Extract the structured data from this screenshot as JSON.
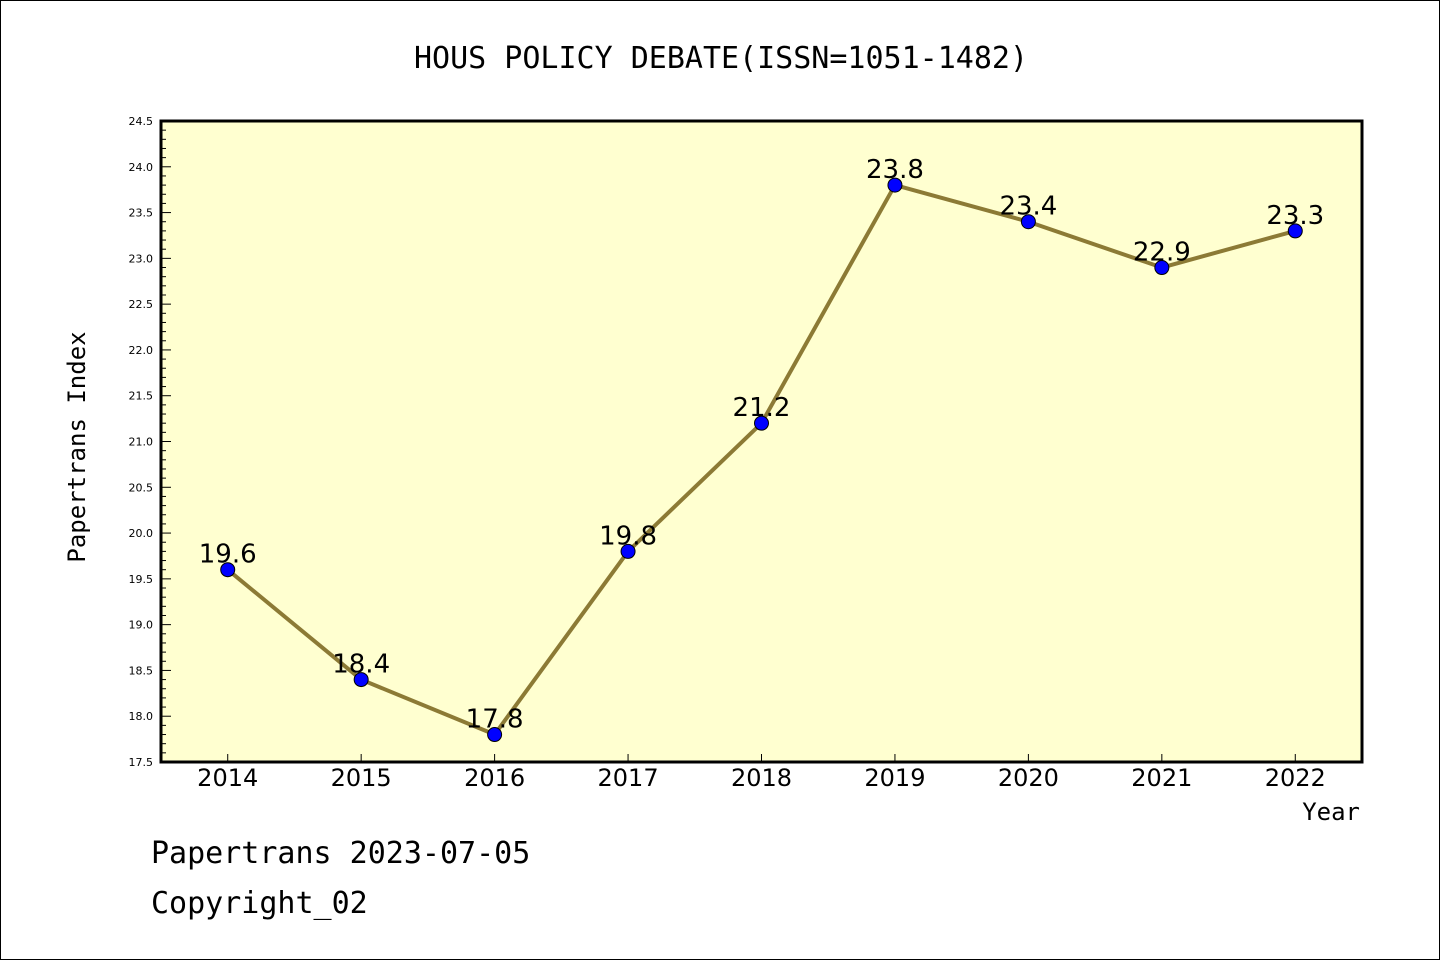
{
  "chart_data": {
    "type": "line",
    "title": "HOUS POLICY DEBATE(ISSN=1051-1482)",
    "xlabel": "Year",
    "ylabel": "Papertrans Index",
    "x": [
      "2014",
      "2015",
      "2016",
      "2017",
      "2018",
      "2019",
      "2020",
      "2021",
      "2022"
    ],
    "series": [
      {
        "values": [
          19.6,
          18.4,
          17.8,
          19.8,
          21.2,
          23.8,
          23.4,
          22.9,
          23.3
        ],
        "labels": [
          "19.6",
          "18.4",
          "17.8",
          "19.8",
          "21.2",
          "23.8",
          "23.4",
          "22.9",
          "23.3"
        ]
      }
    ],
    "ylim": [
      17.5,
      24.5
    ],
    "yticks": [
      "17.5",
      "18.0",
      "18.5",
      "19.0",
      "19.5",
      "20.0",
      "20.5",
      "21.0",
      "21.5",
      "22.0",
      "22.5",
      "23.0",
      "23.5",
      "24.0",
      "24.5"
    ],
    "grid": false,
    "colors": {
      "plot_background": "#ffffd0",
      "line": "#8c7a35",
      "marker": "#0000ff"
    }
  },
  "footer": {
    "date_line": "Papertrans 2023-07-05",
    "copyright": "Copyright_02"
  }
}
